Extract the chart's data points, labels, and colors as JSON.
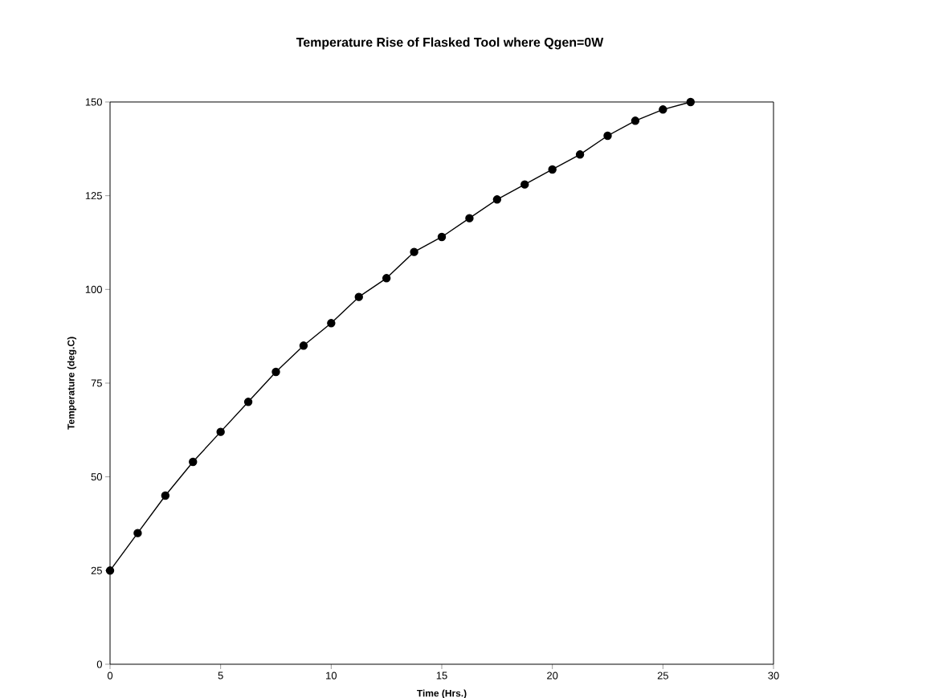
{
  "chart_data": {
    "type": "line",
    "title": "Temperature Rise of Flasked Tool where Qgen=0W",
    "xlabel": "Time (Hrs.)",
    "ylabel": "Temperature (deg.C)",
    "x": [
      0,
      1.25,
      2.5,
      3.75,
      5,
      6.25,
      7.5,
      8.75,
      10,
      11.25,
      12.5,
      13.75,
      15,
      16.25,
      17.5,
      18.75,
      20,
      21.25,
      22.5,
      23.75,
      25,
      26.25
    ],
    "series": [
      {
        "color": "#000000",
        "values": [
          25,
          35,
          45,
          54,
          62,
          70,
          78,
          85,
          91,
          98,
          103,
          110,
          114,
          119,
          124,
          128,
          132,
          136,
          141,
          145,
          148,
          150
        ]
      }
    ],
    "xlim": [
      0,
      30
    ],
    "ylim": [
      0,
      150
    ],
    "xticks": [
      0,
      5,
      10,
      15,
      20,
      25,
      30
    ],
    "yticks": [
      0,
      25,
      50,
      75,
      100,
      125,
      150
    ],
    "marker": "circle",
    "line_style": "solid",
    "grid": false
  }
}
